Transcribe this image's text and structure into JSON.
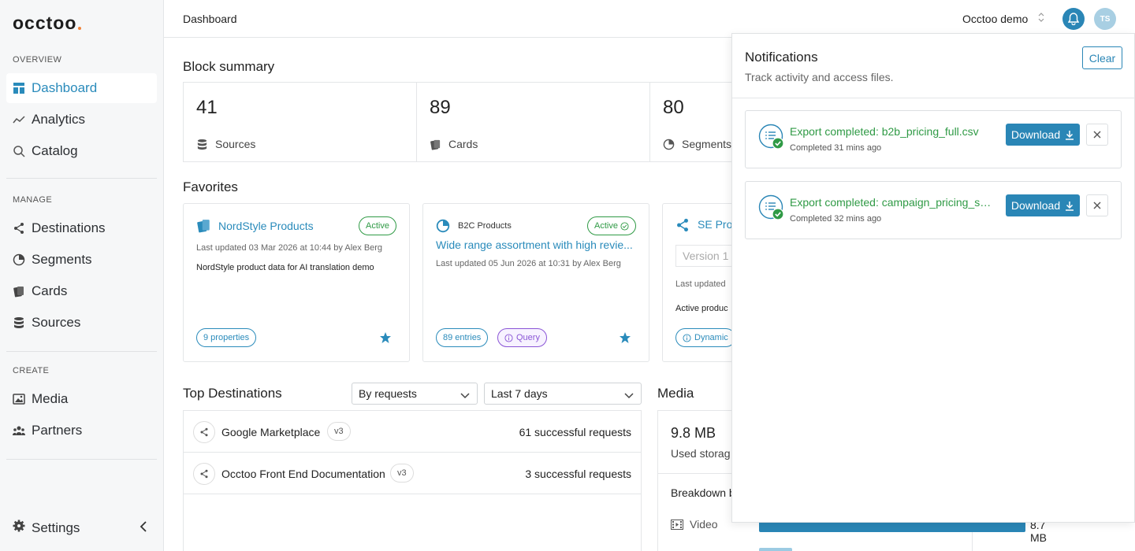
{
  "sidebar": {
    "logo": "occtoo",
    "sections": {
      "overview": "OVERVIEW",
      "manage": "MANAGE",
      "create": "CREATE"
    },
    "items": {
      "dashboard": "Dashboard",
      "analytics": "Analytics",
      "catalog": "Catalog",
      "destinations": "Destinations",
      "segments": "Segments",
      "cards": "Cards",
      "sources": "Sources",
      "media": "Media",
      "partners": "Partners"
    },
    "settings": "Settings"
  },
  "header": {
    "breadcrumb": "Dashboard",
    "org": "Occtoo demo",
    "avatar_initials": "TS"
  },
  "block_summary": {
    "title": "Block summary",
    "cells": [
      {
        "value": "41",
        "label": "Sources"
      },
      {
        "value": "89",
        "label": "Cards"
      },
      {
        "value": "80",
        "label": "Segments"
      }
    ]
  },
  "favorites": {
    "title": "Favorites",
    "cards": [
      {
        "title": "NordStyle Products",
        "status": "Active",
        "updated": "Last updated 03 Mar 2026 at 10:44 by Alex Berg",
        "description": "NordStyle product data for AI translation demo",
        "pill": "9 properties"
      },
      {
        "title": "B2C Products",
        "status": "Active",
        "subtitle": "Wide range assortment with high revie...",
        "updated": "Last updated 05 Jun 2026 at 10:31 by Alex Berg",
        "pill": "89 entries",
        "pill2": "Query"
      },
      {
        "title": "SE Prod",
        "version": "Version 1",
        "updated": "Last updated",
        "description": "Active produc",
        "pill": "Dynamic"
      }
    ]
  },
  "top_destinations": {
    "title": "Top Destinations",
    "sort_select": "By requests",
    "period_select": "Last 7 days",
    "rows": [
      {
        "name": "Google Marketplace",
        "version": "v3",
        "requests": "61 successful requests"
      },
      {
        "name": "Occtoo Front End Documentation",
        "version": "v3",
        "requests": "3 successful requests"
      }
    ]
  },
  "media": {
    "title": "Media",
    "size": "9.8 MB",
    "used_label": "Used storag",
    "breakdown": "Breakdown b",
    "video_label": "Video",
    "video_value": "8.7 MB",
    "video_fraction": 0.89
  },
  "notifications": {
    "title": "Notifications",
    "subtitle": "Track activity and access files.",
    "clear_label": "Clear",
    "download_label": "Download",
    "items": [
      {
        "title": "Export completed: b2b_pricing_full.csv",
        "time": "Completed 31 mins ago"
      },
      {
        "title": "Export completed: campaign_pricing_sa...",
        "time": "Completed 32 mins ago"
      }
    ]
  },
  "colors": {
    "accent": "#2a86b6",
    "success": "#2f9a45",
    "query": "#8a55d6"
  }
}
